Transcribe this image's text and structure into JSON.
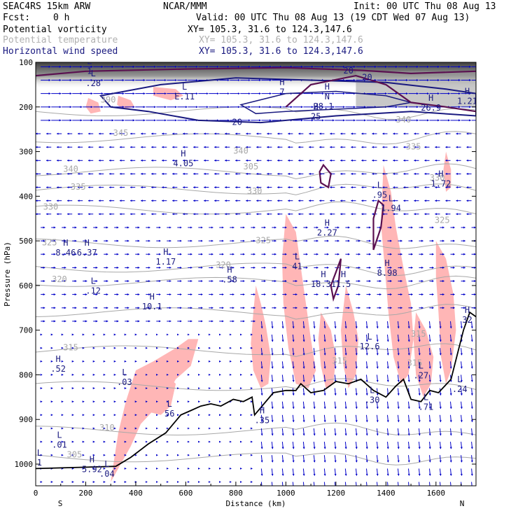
{
  "header": {
    "model": "SEAC4RS 15km ARW",
    "center": "NCAR/MMM",
    "init": "Init: 00 UTC Thu 08 Aug 13",
    "fcst_label": "Fcst:",
    "fcst_value": "0 h",
    "valid": "Valid: 00 UTC Thu 08 Aug 13 (19 CDT Wed 07 Aug 13)",
    "fields": [
      {
        "name": "Potential vorticity",
        "xy": "XY= 105.3, 31.6 to 124.3,147.6"
      },
      {
        "name": "Potential temperature",
        "xy": "XY= 105.3, 31.6 to 124.3,147.6"
      },
      {
        "name": "Horizontal wind speed",
        "xy": "XY= 105.3, 31.6 to 124.3,147.6"
      }
    ]
  },
  "colors": {
    "pv": "#ffb6b6",
    "theta": "#a8a8a8",
    "wind": "#1a1a80",
    "arrows": "#0000c8",
    "terrain": "#000000"
  },
  "chart_data": {
    "type": "cross-section",
    "xlabel": "Distance (km)",
    "ylabel": "Pressure (hPa)",
    "x_ticks": [
      0,
      200,
      400,
      600,
      800,
      1000,
      1200,
      1400,
      1600
    ],
    "y_ticks": [
      100,
      200,
      300,
      400,
      500,
      600,
      700,
      800,
      900,
      1000
    ],
    "xlim": [
      0,
      1760
    ],
    "ylim": [
      1050,
      100
    ],
    "endpoints": {
      "left": "S",
      "right": "N"
    },
    "terrain": {
      "x": [
        0,
        320,
        380,
        450,
        520,
        580,
        620,
        660,
        700,
        740,
        790,
        830,
        865,
        875,
        905,
        950,
        1000,
        1040,
        1060,
        1100,
        1150,
        1200,
        1250,
        1300,
        1350,
        1400,
        1440,
        1470,
        1500,
        1540,
        1575,
        1610,
        1660,
        1710,
        1735,
        1760
      ],
      "p": [
        1010,
        1005,
        985,
        955,
        930,
        890,
        880,
        870,
        865,
        870,
        855,
        860,
        850,
        890,
        870,
        840,
        835,
        835,
        820,
        840,
        835,
        815,
        820,
        810,
        835,
        850,
        825,
        810,
        855,
        860,
        835,
        840,
        810,
        700,
        660,
        670
      ]
    },
    "theta_labels": [
      {
        "text": "390",
        "x": 290,
        "p": 190
      },
      {
        "text": "345",
        "x": 340,
        "p": 265
      },
      {
        "text": "340",
        "x": 820,
        "p": 305
      },
      {
        "text": "340",
        "x": 140,
        "p": 345
      },
      {
        "text": "335",
        "x": 170,
        "p": 385
      },
      {
        "text": "330",
        "x": 875,
        "p": 395
      },
      {
        "text": "305",
        "x": 860,
        "p": 340
      },
      {
        "text": "330",
        "x": 60,
        "p": 430
      },
      {
        "text": "325",
        "x": 55,
        "p": 510
      },
      {
        "text": "325",
        "x": 910,
        "p": 505
      },
      {
        "text": "320",
        "x": 750,
        "p": 560
      },
      {
        "text": "320",
        "x": 95,
        "p": 592
      },
      {
        "text": "315",
        "x": 140,
        "p": 745
      },
      {
        "text": "310",
        "x": 285,
        "p": 925
      },
      {
        "text": "305",
        "x": 155,
        "p": 985
      },
      {
        "text": "340",
        "x": 1470,
        "p": 235
      },
      {
        "text": "335",
        "x": 1510,
        "p": 295
      },
      {
        "text": "330",
        "x": 1605,
        "p": 365
      },
      {
        "text": "325",
        "x": 1625,
        "p": 460
      },
      {
        "text": "315",
        "x": 1530,
        "p": 715
      },
      {
        "text": "315",
        "x": 1515,
        "p": 780
      },
      {
        "text": "315",
        "x": 1215,
        "p": 775
      }
    ],
    "wind_labels": [
      {
        "text": "20",
        "x": 1250,
        "p": 125
      },
      {
        "text": "20",
        "x": 805,
        "p": 240
      },
      {
        "text": "28.1",
        "x": 1150,
        "p": 205
      },
      {
        "text": "20",
        "x": 1325,
        "p": 140
      }
    ],
    "extrema": [
      {
        "kind": "L",
        "value": "1",
        "x": 215,
        "p": 123
      },
      {
        "kind": "L",
        "value": ".28",
        "x": 230,
        "p": 150
      },
      {
        "kind": "L",
        "value": "E.11",
        "x": 595,
        "p": 180
      },
      {
        "kind": "H",
        "value": "7",
        "x": 985,
        "p": 170
      },
      {
        "kind": "H",
        "value": "N",
        "x": 1165,
        "p": 180
      },
      {
        "kind": "H",
        "value": "25",
        "x": 1120,
        "p": 225
      },
      {
        "kind": "H",
        "value": "26.9",
        "x": 1580,
        "p": 205
      },
      {
        "kind": "H",
        "value": "1.21",
        "x": 1725,
        "p": 190
      },
      {
        "kind": "H",
        "value": "4.05",
        "x": 590,
        "p": 330
      },
      {
        "kind": "H",
        "value": "1.72",
        "x": 1620,
        "p": 375
      },
      {
        "kind": "L",
        "value": ".95",
        "x": 1375,
        "p": 400
      },
      {
        "kind": "L",
        "value": "1.94",
        "x": 1420,
        "p": 430
      },
      {
        "kind": "H",
        "value": "2.27",
        "x": 1165,
        "p": 485
      },
      {
        "kind": "H",
        "value": "8.46",
        "x": 120,
        "p": 530
      },
      {
        "kind": "H",
        "value": "6.37",
        "x": 205,
        "p": 530
      },
      {
        "kind": "H",
        "value": "1.17",
        "x": 520,
        "p": 550
      },
      {
        "kind": "H",
        "value": "8.98",
        "x": 1405,
        "p": 575
      },
      {
        "kind": "H",
        "value": ".58",
        "x": 775,
        "p": 590
      },
      {
        "kind": "L",
        "value": "41",
        "x": 1045,
        "p": 560
      },
      {
        "kind": "H",
        "value": "18.31",
        "x": 1150,
        "p": 600
      },
      {
        "kind": "H",
        "value": "1.5",
        "x": 1230,
        "p": 600
      },
      {
        "kind": "L",
        "value": ".12",
        "x": 230,
        "p": 615
      },
      {
        "kind": "H",
        "value": "10.1",
        "x": 465,
        "p": 650
      },
      {
        "kind": "H",
        "value": "32",
        "x": 1725,
        "p": 680
      },
      {
        "kind": "L",
        "value": "12.6",
        "x": 1335,
        "p": 740
      },
      {
        "kind": "H",
        "value": ".52",
        "x": 90,
        "p": 790
      },
      {
        "kind": "L",
        "value": ".27",
        "x": 1540,
        "p": 805
      },
      {
        "kind": "L",
        "value": ".03",
        "x": 355,
        "p": 820
      },
      {
        "kind": "L",
        "value": ".24",
        "x": 1695,
        "p": 835
      },
      {
        "kind": "L",
        "value": ".30",
        "x": 1345,
        "p": 860
      },
      {
        "kind": "L",
        "value": ".71",
        "x": 1560,
        "p": 875
      },
      {
        "kind": "L",
        "value": "56",
        "x": 535,
        "p": 890
      },
      {
        "kind": "H",
        "value": ".35",
        "x": 905,
        "p": 905
      },
      {
        "kind": "L",
        "value": ".01",
        "x": 95,
        "p": 960
      },
      {
        "kind": "H",
        "value": "5.92",
        "x": 225,
        "p": 1015
      },
      {
        "kind": "L",
        "value": ".04",
        "x": 285,
        "p": 1025
      },
      {
        "kind": "L",
        "value": "1",
        "x": 15,
        "p": 1000
      }
    ]
  }
}
